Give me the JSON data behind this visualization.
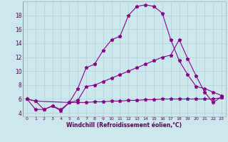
{
  "xlabel": "Windchill (Refroidissement éolien,°C)",
  "bg_color": "#cce8ee",
  "line_color": "#880088",
  "line1_x": [
    0,
    1,
    2,
    3,
    4,
    5,
    6,
    7,
    8,
    9,
    10,
    11,
    12,
    13,
    14,
    15,
    16,
    17,
    18,
    19,
    20,
    21,
    22,
    23
  ],
  "line1_y": [
    6.0,
    5.7,
    4.5,
    5.0,
    4.3,
    5.5,
    7.5,
    10.5,
    11.0,
    13.0,
    14.5,
    15.0,
    18.0,
    19.3,
    19.5,
    19.3,
    18.3,
    14.5,
    11.5,
    9.5,
    7.8,
    7.5,
    7.0,
    6.5
  ],
  "line2_x": [
    0,
    1,
    2,
    3,
    4,
    5,
    6,
    7,
    8,
    9,
    10,
    11,
    12,
    13,
    14,
    15,
    16,
    17,
    18,
    19,
    20,
    21,
    22,
    23
  ],
  "line2_y": [
    6.0,
    4.5,
    4.5,
    5.0,
    4.5,
    5.5,
    5.8,
    7.8,
    8.0,
    8.5,
    9.0,
    9.5,
    10.0,
    10.5,
    11.0,
    11.5,
    12.0,
    12.3,
    14.5,
    11.8,
    9.3,
    7.0,
    5.5,
    6.3
  ],
  "line3_x": [
    0,
    1,
    5,
    6,
    7,
    8,
    9,
    10,
    11,
    12,
    13,
    14,
    15,
    16,
    17,
    18,
    19,
    20,
    21,
    22,
    23
  ],
  "line3_y": [
    6.0,
    5.7,
    5.5,
    5.5,
    5.5,
    5.6,
    5.6,
    5.7,
    5.7,
    5.8,
    5.8,
    5.9,
    5.9,
    6.0,
    6.0,
    6.0,
    6.0,
    6.0,
    6.0,
    6.0,
    6.2
  ],
  "xlim": [
    -0.5,
    23.5
  ],
  "ylim": [
    3.5,
    20.0
  ],
  "yticks": [
    4,
    6,
    8,
    10,
    12,
    14,
    16,
    18
  ],
  "xticks": [
    0,
    1,
    2,
    3,
    4,
    5,
    6,
    7,
    8,
    9,
    10,
    11,
    12,
    13,
    14,
    15,
    16,
    17,
    18,
    19,
    20,
    21,
    22,
    23
  ],
  "grid_color": "#aad4da",
  "marker": "*",
  "markersize": 3.5,
  "linewidth": 0.8
}
